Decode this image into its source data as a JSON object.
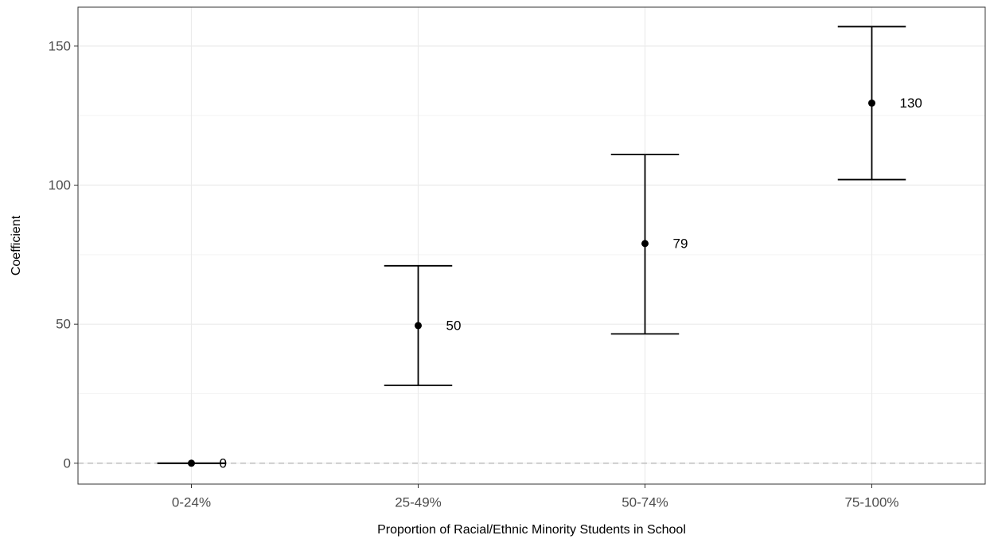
{
  "chart_data": {
    "type": "scatter",
    "title": "",
    "xlabel": "Proportion of Racial/Ethnic Minority Students in School",
    "ylabel": "Coefficient",
    "categories": [
      "0-24%",
      "25-49%",
      "50-74%",
      "75-100%"
    ],
    "values": [
      0,
      49.5,
      79,
      129.5
    ],
    "ci_lower": [
      0,
      28,
      46.5,
      102
    ],
    "ci_upper": [
      0,
      71,
      111,
      157
    ],
    "labels": [
      "0",
      "50",
      "79",
      "130"
    ],
    "ylim": [
      -7.5,
      164
    ],
    "yticks": [
      0,
      50,
      100,
      150
    ],
    "yticks_labels": [
      "0",
      "50",
      "100",
      "150"
    ],
    "reference_line": 0,
    "grid": true,
    "legend": "none"
  },
  "colors": {
    "background": "#ffffff",
    "panel_border": "#333333",
    "grid_major": "#ebebeb",
    "grid_minor": "#f3f3f3",
    "marks": "#000000",
    "reference_line": "#bdbdbd",
    "tick_text": "#4d4d4d"
  }
}
